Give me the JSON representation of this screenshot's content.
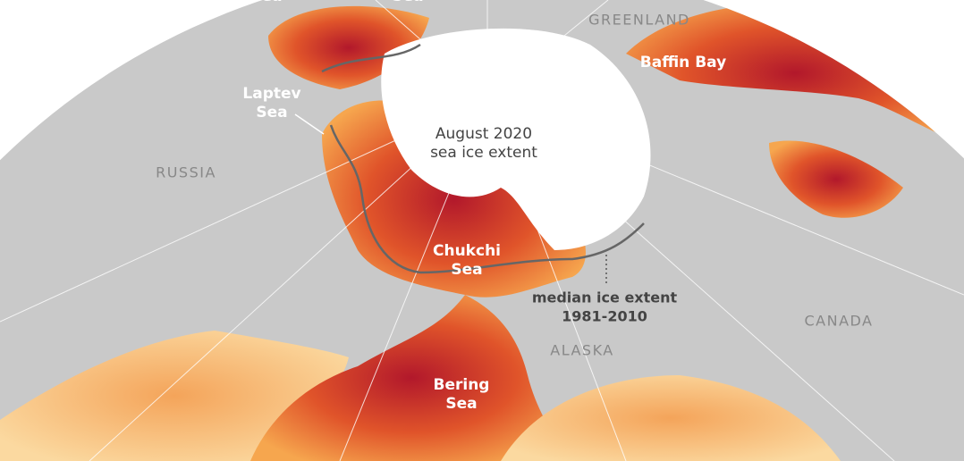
{
  "labels": [
    {
      "lines": [
        "Sea"
      ]
    },
    {
      "lines": [
        "Sea"
      ]
    },
    {
      "lines": [
        "GREENLAND"
      ]
    },
    {
      "lines": [
        "Baffin Bay"
      ]
    },
    {
      "lines": [
        "Laptev",
        "Sea"
      ]
    },
    {
      "lines": [
        "August 2020",
        "sea ice extent"
      ]
    },
    {
      "lines": [
        "RUSSIA"
      ]
    },
    {
      "lines": [
        "Chukchi",
        "Sea"
      ]
    },
    {
      "lines": [
        "median ice extent",
        "1981-2010"
      ]
    },
    {
      "lines": [
        "CANADA"
      ]
    },
    {
      "lines": [
        "ALASKA"
      ]
    },
    {
      "lines": [
        "Bering",
        "Sea"
      ]
    }
  ]
}
